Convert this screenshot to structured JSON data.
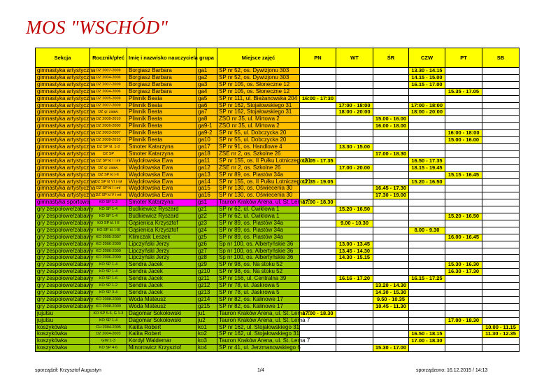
{
  "title": "MOS \"WSCHÓD\"",
  "headers": [
    "Sekcja",
    "Rocznik/płeć",
    "Imię i nazwisko nauczyciela",
    "grupa",
    "Miejsce zajęć",
    "PN",
    "WT",
    "ŚR",
    "CZW",
    "PT",
    "SB"
  ],
  "colors": {
    "header": "#ffff00",
    "gimnastyka": "#ffc000",
    "special": "#ff00ff",
    "green": "#99cc00",
    "time": "#ffff00",
    "title": "#c00000"
  },
  "rows": [
    {
      "sekcja": "gimnastyka artystyczna",
      "rocznik": "DZ 2007-2009",
      "nauczyciel": "Borgiasz Barbara",
      "grupa": "ga1",
      "miejsce": "SP nr 52, os. Dywizjonu 303",
      "pn": "",
      "wt": "",
      "sr": "",
      "czw": "13.30 - 14.15",
      "pt": "",
      "sb": "",
      "color": "gimnastyka"
    },
    {
      "sekcja": "gimnastyka artystyczna",
      "rocznik": "DZ 2004-2006",
      "nauczyciel": "Borgiasz Barbara",
      "grupa": "ga2",
      "miejsce": "SP nr 52, os. Dywizjonu 303",
      "pn": "",
      "wt": "",
      "sr": "",
      "czw": "14.15 - 15.00",
      "pt": "",
      "sb": "",
      "color": "gimnastyka"
    },
    {
      "sekcja": "gimnastyka artystyczna",
      "rocznik": "DZ 2007-2009",
      "nauczyciel": "Borgiasz Barbara",
      "grupa": "ga3",
      "miejsce": "SP nr 105, os. Słoneczne 12",
      "pn": "",
      "wt": "",
      "sr": "",
      "czw": "16.15 - 17.00",
      "pt": "",
      "sb": "",
      "color": "gimnastyka"
    },
    {
      "sekcja": "gimnastyka artystyczna",
      "rocznik": "DZ 2004-2006",
      "nauczyciel": "Borgiasz Barbara",
      "grupa": "ga4",
      "miejsce": "SP nr 105, os. Słoneczne 12",
      "pn": "",
      "wt": "",
      "sr": "",
      "czw": "",
      "pt": "15.35 - 17.05",
      "sb": "",
      "color": "gimnastyka"
    },
    {
      "sekcja": "gimnastyka artystyczna",
      "rocznik": "DZ 2005-2009",
      "nauczyciel": "Pliwnik Beata",
      "grupa": "ga5",
      "miejsce": "SP nr 111, ul. Bieżanowska 204",
      "pn": "16:00 - 17:30",
      "wt": "",
      "sr": "",
      "czw": "",
      "pt": "",
      "sb": "",
      "color": "gimnastyka"
    },
    {
      "sekcja": "gimnastyka artystyczna",
      "rocznik": "DZ 2007-2009",
      "nauczyciel": "Pliwnik Beata",
      "grupa": "ga6",
      "miejsce": "SP nr 162, Stojałowskiego 31",
      "pn": "",
      "wt": "17:00 - 18:00",
      "sr": "",
      "czw": "17:00 - 18:00",
      "pt": "",
      "sb": "",
      "color": "gimnastyka"
    },
    {
      "sekcja": "gimnastyka artystyczna",
      "rocznik": "DZ gr zaaw.",
      "nauczyciel": "Pliwnik Beata",
      "grupa": "ga7",
      "miejsce": "SP nr 162, Stojałowskiego 31",
      "pn": "",
      "wt": "18:00 - 20:00",
      "sr": "",
      "czw": "18:00 - 20:00",
      "pt": "",
      "sb": "",
      "color": "gimnastyka"
    },
    {
      "sekcja": "gimnastyka artystyczna",
      "rocznik": "DZ 2008-2010",
      "nauczyciel": "Pliwnik Beata",
      "grupa": "ga8",
      "miejsce": "ZSO nr 35, ul. Mirtowa 2",
      "pn": "",
      "wt": "",
      "sr": "15.00 - 16.00",
      "czw": "",
      "pt": "",
      "sb": "",
      "color": "gimnastyka"
    },
    {
      "sekcja": "gimnastyka artystyczna",
      "rocznik": "DZ 2006-2000",
      "nauczyciel": "Pliwnik Beata",
      "grupa": "ga9-1",
      "miejsce": "ZSO nr 35, ul. Mirtowa 2",
      "pn": "",
      "wt": "",
      "sr": "16.00 - 18.00",
      "czw": "",
      "pt": "",
      "sb": "",
      "color": "gimnastyka"
    },
    {
      "sekcja": "gimnastyka artystyczna",
      "rocznik": "DZ 2003-2007",
      "nauczyciel": "Pliwnik Beata",
      "grupa": "ga9-2",
      "miejsce": "SP nr 55, ul. Dobczycka 20",
      "pn": "",
      "wt": "",
      "sr": "",
      "czw": "",
      "pt": "16:00 - 18:00",
      "sb": "",
      "color": "gimnastyka"
    },
    {
      "sekcja": "gimnastyka artystyczna",
      "rocznik": "DZ 2008-2010",
      "nauczyciel": "Pliwnik Beata",
      "grupa": "ga10",
      "miejsce": "SP nr 55, ul. Dobczycka 20",
      "pn": "",
      "wt": "",
      "sr": "",
      "czw": "",
      "pt": "15.00 - 16.00",
      "sb": "",
      "color": "gimnastyka"
    },
    {
      "sekcja": "gimnastyka artystyczna",
      "rocznik": "DZ SP kl. 1-3",
      "nauczyciel": "Smoter Katarzyna",
      "grupa": "ga17",
      "miejsce": "SP nr 91, os. Handlowe 4",
      "pn": "",
      "wt": "13.30 - 15.00",
      "sr": "",
      "czw": "",
      "pt": "",
      "sb": "",
      "color": "gimnastyka"
    },
    {
      "sekcja": "gimnastyka artystyczna",
      "rocznik": "DZ SP",
      "nauczyciel": "Smoter Katarzyna",
      "grupa": "ga18",
      "miejsce": "ZSE nr 2, os. Szkolne 26",
      "pn": "",
      "wt": "",
      "sr": "17.00 - 18.30",
      "czw": "",
      "pt": "",
      "sb": "",
      "color": "gimnastyka"
    },
    {
      "sekcja": "gimnastyka artystyczna",
      "rocznik": "DZ SP kl I i mł",
      "nauczyciel": "Wądołowska Ewa",
      "grupa": "ga11",
      "miejsce": "SP nr 155, os. II Pułku Lotniczego 21",
      "pn": "16.05 - 17.35",
      "wt": "",
      "sr": "",
      "czw": "16.50 - 17.35",
      "pt": "",
      "sb": "",
      "color": "gimnastyka"
    },
    {
      "sekcja": "gimnastyka artystyczna",
      "rocznik": "DZ gr zaaw.",
      "nauczyciel": "Wądołowska Ewa",
      "grupa": "ga12",
      "miejsce": "ZSE nr 2, os. Szkolne 26",
      "pn": "",
      "wt": "17.00 - 20.00",
      "sr": "",
      "czw": "18.15 - 19.45",
      "pt": "",
      "sb": "",
      "color": "gimnastyka"
    },
    {
      "sekcja": "gimnastyka artystyczna",
      "rocznik": "DZ SP kl I-II",
      "nauczyciel": "Wądołowska Ewa",
      "grupa": "ga13",
      "miejsce": "SP nr 89, os. Piastów 34a",
      "pn": "",
      "wt": "",
      "sr": "",
      "czw": "",
      "pt": "15.15 - 16.45",
      "sb": "",
      "color": "gimnastyka"
    },
    {
      "sekcja": "gimnastyka artystyczna",
      "rocznik": "DZ SP kl VI i mł",
      "nauczyciel": "Wądołowska Ewa",
      "grupa": "ga14",
      "miejsce": "SP nr 155, os. II Pułku Lotniczego 21",
      "pn": "17.35 - 19.05",
      "wt": "",
      "sr": "",
      "czw": "15.20 - 16.50",
      "pt": "",
      "sb": "",
      "color": "gimnastyka"
    },
    {
      "sekcja": "gimnastyka artystyczna",
      "rocznik": "DZ SP kl I i mł",
      "nauczyciel": "Wądołowska Ewa",
      "grupa": "ga15",
      "miejsce": "SP nr 130, os. Oświecenia 30",
      "pn": "",
      "wt": "",
      "sr": "16.45 - 17.30",
      "czw": "",
      "pt": "",
      "sb": "",
      "color": "gimnastyka"
    },
    {
      "sekcja": "gimnastyka artystyczna",
      "rocznik": "DZ SP kl V i mł",
      "nauczyciel": "Wądołowska Ewa",
      "grupa": "ga16",
      "miejsce": "SP nr 130, os. Oświecenia 30",
      "pn": "",
      "wt": "",
      "sr": "17.30 - 19.00",
      "czw": "",
      "pt": "",
      "sb": "",
      "color": "gimnastyka"
    },
    {
      "sekcja": "gimnastyka sportowa",
      "rocznik": "KO SP 1-3",
      "nauczyciel": "Smoter Katarzyna",
      "grupa": "gs1",
      "miejsce": "Tauron Kraków Arena, ul. St. Lema 7",
      "pn": "17.00 - 18.30",
      "wt": "",
      "sr": "",
      "czw": "",
      "pt": "",
      "sb": "",
      "color": "special"
    },
    {
      "sekcja": "gry zespołowe/zabawy",
      "rocznik": "KO SP 1-4",
      "nauczyciel": "Budkiewicz Ryszard",
      "grupa": "gz1",
      "miejsce": "SP nr 62, ul. Ćwiklowa 1",
      "pn": "",
      "wt": "15.20 - 16.50",
      "sr": "",
      "czw": "",
      "pt": "",
      "sb": "",
      "color": "green"
    },
    {
      "sekcja": "gry zespołowe/zabawy",
      "rocznik": "KO SP 1-4",
      "nauczyciel": "Budkiewicz Ryszard",
      "grupa": "gz2",
      "miejsce": "SP nr 62, ul. Ćwiklowa 1",
      "pn": "",
      "wt": "",
      "sr": "",
      "czw": "",
      "pt": "15.20 - 16.50",
      "sb": "",
      "color": "green"
    },
    {
      "sekcja": "gry zespołowe/zabawy",
      "rocznik": "KO SP kl. I II",
      "nauczyciel": "Gąsienica Krzysztof",
      "grupa": "gz3",
      "miejsce": "SP nr 89, os. Piastów 34a",
      "pn": "",
      "wt": "9.00 - 10.30",
      "sr": "",
      "czw": "",
      "pt": "",
      "sb": "",
      "color": "green"
    },
    {
      "sekcja": "gry zespołowe/zabawy",
      "rocznik": "KO SP kl. I III",
      "nauczyciel": "Gąsienica Krzysztof",
      "grupa": "gz4",
      "miejsce": "SP nr 89, os. Piastów 34a",
      "pn": "",
      "wt": "",
      "sr": "",
      "czw": "8.00 - 9.30",
      "pt": "",
      "sb": "",
      "color": "green"
    },
    {
      "sekcja": "gry zespołowe/zabawy",
      "rocznik": "KO 2005-2007",
      "nauczyciel": "Klimczak Leszek",
      "grupa": "gz5",
      "miejsce": "SP nr 89, os. Piastów 34a",
      "pn": "",
      "wt": "",
      "sr": "",
      "czw": "",
      "pt": "16.00 - 16.45",
      "sb": "",
      "color": "green"
    },
    {
      "sekcja": "gry zespołowe/zabawy",
      "rocznik": "KO 2006-2009",
      "nauczyciel": "Lipczyński Jerzy",
      "grupa": "gz6",
      "miejsce": "Sp nr 100, os. Albertyńskie 36",
      "pn": "",
      "wt": "13.00 - 13.45",
      "sr": "",
      "czw": "",
      "pt": "",
      "sb": "",
      "color": "green"
    },
    {
      "sekcja": "gry zespołowe/zabawy",
      "rocznik": "KO 2006-2009",
      "nauczyciel": "Lipczyński Jerzy",
      "grupa": "gz7",
      "miejsce": "Sp nr 100, os. Albertyńskie 36",
      "pn": "",
      "wt": "13.45 - 14.30",
      "sr": "",
      "czw": "",
      "pt": "",
      "sb": "",
      "color": "green"
    },
    {
      "sekcja": "gry zespołowe/zabawy",
      "rocznik": "KO 2006-2009",
      "nauczyciel": "Lipczyński Jerzy",
      "grupa": "gz8",
      "miejsce": "Sp nr 100, os. Albertyńskie 36",
      "pn": "",
      "wt": "14.30 - 15.15",
      "sr": "",
      "czw": "",
      "pt": "",
      "sb": "",
      "color": "green"
    },
    {
      "sekcja": "gry zespołowe/zabawy",
      "rocznik": "KO SP 1-4",
      "nauczyciel": "Sendra Jacek",
      "grupa": "gz9",
      "miejsce": "SP nr 98, os. Na stoku 52",
      "pn": "",
      "wt": "",
      "sr": "",
      "czw": "",
      "pt": "15.30 - 16.30",
      "sb": "",
      "color": "green"
    },
    {
      "sekcja": "gry zespołowe/zabawy",
      "rocznik": "KO SP 1-4",
      "nauczyciel": "Sendra Jacek",
      "grupa": "gz10",
      "miejsce": "SP nr 98, os. Na stoku 52",
      "pn": "",
      "wt": "",
      "sr": "",
      "czw": "",
      "pt": "16.30 - 17.30",
      "sb": "",
      "color": "green"
    },
    {
      "sekcja": "gry zespołowe/zabawy",
      "rocznik": "KO SP 1-6",
      "nauczyciel": "Sendra Jacek",
      "grupa": "gz11",
      "miejsce": "SP nr 156, ul. Centralna 39",
      "pn": "",
      "wt": "16.16 - 17.20",
      "sr": "",
      "czw": "16.15 - 17.25",
      "pt": "",
      "sb": "",
      "color": "green"
    },
    {
      "sekcja": "gry zespołowe/zabawy",
      "rocznik": "KO SP 1-2",
      "nauczyciel": "Sendra Jacek",
      "grupa": "gz12",
      "miejsce": "SP nr 78, ul. Jaskrowa 5",
      "pn": "",
      "wt": "",
      "sr": "13.20 - 14.30",
      "czw": "",
      "pt": "",
      "sb": "",
      "color": "green"
    },
    {
      "sekcja": "gry zespołowe/zabawy",
      "rocznik": "KO SP 3-4",
      "nauczyciel": "Sendra Jacek",
      "grupa": "gz13",
      "miejsce": "SP nr 78, ul. Jaskrowa 5",
      "pn": "",
      "wt": "",
      "sr": "14.30 - 15.30",
      "czw": "",
      "pt": "",
      "sb": "",
      "color": "green"
    },
    {
      "sekcja": "gry zespołowe/zabawy",
      "rocznik": "KO 2008-2009",
      "nauczyciel": "Woda Mateusz",
      "grupa": "gz14",
      "miejsce": "SP nr 82, os. Kalinowe 17",
      "pn": "",
      "wt": "",
      "sr": "9.50 - 10.35",
      "czw": "",
      "pt": "",
      "sb": "",
      "color": "green"
    },
    {
      "sekcja": "gry zespołowe/zabawy",
      "rocznik": "KO 2008-2009",
      "nauczyciel": "Woda Mateusz",
      "grupa": "gz15",
      "miejsce": "SP nr 82, os. Kalinowe 17",
      "pn": "",
      "wt": "",
      "sr": "10.45 - 11.30",
      "czw": "",
      "pt": "",
      "sb": "",
      "color": "green"
    },
    {
      "sekcja": "jujutsu",
      "rocznik": "KO SP 5-6, G 1-3",
      "nauczyciel": "Dagomar Sokołowski",
      "grupa": "ju1",
      "miejsce": "Tauron Kraków Arena, ul. St. Lema 7",
      "pn": "17.00 - 18.30",
      "wt": "",
      "sr": "",
      "czw": "",
      "pt": "",
      "sb": "",
      "color": "green"
    },
    {
      "sekcja": "jujutsu",
      "rocznik": "KO SP 1-4",
      "nauczyciel": "Dagomar Sokołowski",
      "grupa": "ju2",
      "miejsce": "Tauron Kraków Arena, ul. St. Lema 7",
      "pn": "",
      "wt": "",
      "sr": "",
      "czw": "",
      "pt": "17.00 - 18.30",
      "sb": "",
      "color": "green"
    },
    {
      "sekcja": "koszykówka",
      "rocznik": "CH 2004-2005",
      "nauczyciel": "Kalita Robert",
      "grupa": "ko1",
      "miejsce": "SP nr 162, ul. Stojałowskiego 31",
      "pn": "",
      "wt": "",
      "sr": "",
      "czw": "",
      "pt": "",
      "sb": "10.00 - 11.15",
      "color": "green"
    },
    {
      "sekcja": "koszykówka",
      "rocznik": "DZ 2004-2003",
      "nauczyciel": "Kalita Robert",
      "grupa": "ko2",
      "miejsce": "SP nr 162, ul. Stojałowskiego 31",
      "pn": "",
      "wt": "",
      "sr": "",
      "czw": "16.50 - 18.15",
      "pt": "",
      "sb": "11.30 - 12.35",
      "color": "green"
    },
    {
      "sekcja": "koszykówka",
      "rocznik": "GIM 1-3",
      "nauczyciel": "Kordyl Waldemar",
      "grupa": "ko3",
      "miejsce": "Tauron Kraków Arena, ul. St. Lema 7",
      "pn": "",
      "wt": "",
      "sr": "",
      "czw": "17.00 - 18.30",
      "pt": "",
      "sb": "",
      "color": "green"
    },
    {
      "sekcja": "koszykówka",
      "rocznik": "KO SP 4-6",
      "nauczyciel": "Minorowicz Krzysztof",
      "grupa": "ko4",
      "miejsce": "SP nr 41, ul. Jerzmanowskiego 6",
      "pn": "",
      "wt": "",
      "sr": "15.30 - 17.00",
      "czw": "",
      "pt": "",
      "sb": "",
      "color": "green"
    }
  ],
  "footer": {
    "left": "sporządził: Krzysztof Augustyn",
    "page": "1/4",
    "right": "sporządzono: 16.12.2015 / 14:13"
  }
}
